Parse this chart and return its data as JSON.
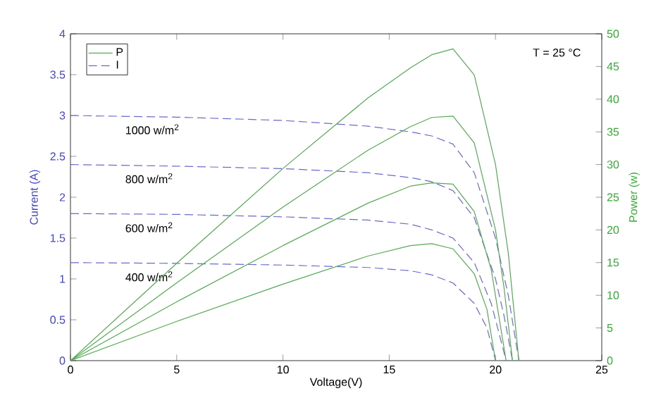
{
  "chart_data": {
    "type": "line",
    "xlabel": "Voltage(V)",
    "ylabel": "Current (A)",
    "y2label": "Power (w)",
    "xlim": [
      0,
      25
    ],
    "xticks": [
      0,
      5,
      10,
      15,
      20,
      25
    ],
    "ylim": [
      0,
      4
    ],
    "yticks": [
      0,
      0.5,
      1,
      1.5,
      2,
      2.5,
      3,
      3.5,
      4
    ],
    "y2lim": [
      0,
      50
    ],
    "y2ticks": [
      0,
      5,
      10,
      15,
      20,
      25,
      30,
      35,
      40,
      45,
      50
    ],
    "legend": "top left",
    "grid": false,
    "marker": "none",
    "series": [
      {
        "name": "P",
        "axis": "y2",
        "color": "#55aa55",
        "line_style": "solid",
        "x": [
          0,
          5,
          10,
          14,
          16,
          17,
          18,
          19,
          20,
          20.6,
          21.1
        ],
        "values": [
          0,
          14.9,
          29.4,
          40.2,
          44.8,
          46.8,
          47.7,
          43.7,
          30,
          16.5,
          0
        ]
      },
      {
        "name": "I",
        "axis": "y",
        "color": "#6a6acc",
        "line_style": "dashed",
        "x": [
          0,
          5,
          10,
          14,
          16,
          17,
          18,
          19,
          20,
          20.6,
          21.1
        ],
        "values": [
          3.0,
          2.98,
          2.94,
          2.87,
          2.8,
          2.75,
          2.65,
          2.3,
          1.5,
          0.8,
          0
        ]
      },
      {
        "axis": "y2",
        "color": "#55aa55",
        "line_style": "solid",
        "x": [
          0,
          5,
          10,
          14,
          16,
          17,
          18,
          19,
          20,
          20.4,
          20.8
        ],
        "values": [
          0,
          11.9,
          23.5,
          32.2,
          35.8,
          37.2,
          37.4,
          33.3,
          20,
          11.2,
          0
        ]
      },
      {
        "axis": "y",
        "color": "#6a6acc",
        "line_style": "dashed",
        "x": [
          0,
          5,
          10,
          14,
          16,
          17,
          18,
          19,
          20,
          20.4,
          20.8
        ],
        "values": [
          2.4,
          2.38,
          2.35,
          2.3,
          2.24,
          2.19,
          2.08,
          1.75,
          1.0,
          0.55,
          0
        ]
      },
      {
        "axis": "y2",
        "color": "#55aa55",
        "line_style": "solid",
        "x": [
          0,
          5,
          10,
          14,
          16,
          17,
          18,
          19,
          19.8,
          20.5
        ],
        "values": [
          0,
          9,
          17.6,
          24.1,
          26.7,
          27.2,
          27,
          22.8,
          13.9,
          0
        ]
      },
      {
        "axis": "y",
        "color": "#6a6acc",
        "line_style": "dashed",
        "x": [
          0,
          5,
          10,
          14,
          16,
          17,
          18,
          19,
          19.8,
          20.5
        ],
        "values": [
          1.8,
          1.79,
          1.76,
          1.72,
          1.67,
          1.6,
          1.5,
          1.2,
          0.7,
          0
        ]
      },
      {
        "axis": "y2",
        "color": "#55aa55",
        "line_style": "solid",
        "x": [
          0,
          5,
          10,
          14,
          16,
          17,
          18,
          19,
          19.6,
          20.0
        ],
        "values": [
          0,
          6,
          11.7,
          16,
          17.6,
          17.9,
          17.1,
          13.3,
          7.8,
          0
        ]
      },
      {
        "axis": "y",
        "color": "#6a6acc",
        "line_style": "dashed",
        "x": [
          0,
          5,
          10,
          14,
          16,
          17,
          18,
          19,
          19.6,
          20.0
        ],
        "values": [
          1.2,
          1.19,
          1.17,
          1.14,
          1.1,
          1.05,
          0.95,
          0.7,
          0.4,
          0
        ]
      }
    ],
    "annotations": [
      "1000 w/m$^{2}$",
      "800 w/m$^{2}$",
      "600 w/m$^{2}$",
      "400 w/m$^{2}$",
      "T = 25 °C"
    ]
  }
}
